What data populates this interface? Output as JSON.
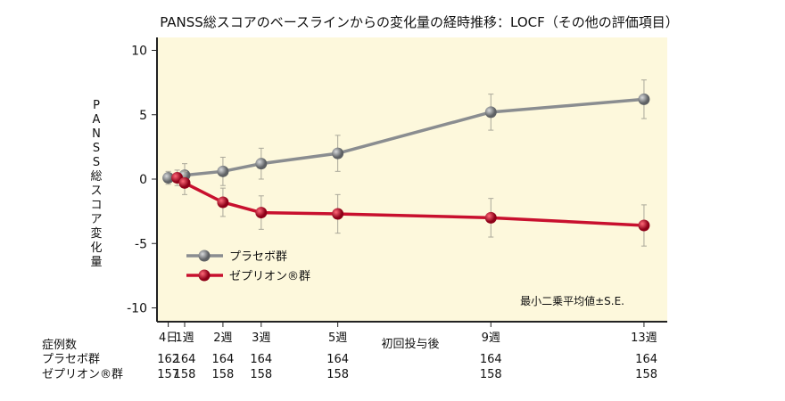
{
  "chart_data": {
    "type": "line",
    "title": "PANSS総スコアのベースラインからの変化量の経時推移：LOCF（その他の評価項目）",
    "ylabel": "PANSS総スコア変化量",
    "xlabel": "初回投与後",
    "ylim": [
      -11,
      11
    ],
    "yticks": [
      10,
      5,
      0,
      -5,
      -10
    ],
    "x_days": [
      4,
      7,
      14,
      21,
      35,
      63,
      91
    ],
    "categories": [
      "4日",
      "1週",
      "2週",
      "3週",
      "5週",
      "9週",
      "13週"
    ],
    "note": "最小二乗平均値±S.E.",
    "background": "#fdf8dc",
    "series": [
      {
        "name": "プラセボ群",
        "color": "#8a8d90",
        "values": [
          0.1,
          0.3,
          0.6,
          1.2,
          2.0,
          5.2,
          6.2
        ],
        "se": [
          0.5,
          0.9,
          1.1,
          1.2,
          1.4,
          1.4,
          1.5
        ]
      },
      {
        "name": "ゼプリオン®群",
        "color": "#c8102e",
        "values": [
          0.1,
          -0.3,
          -1.8,
          -2.6,
          -2.7,
          -3.0,
          -3.6
        ],
        "se": [
          0.6,
          0.9,
          1.1,
          1.3,
          1.5,
          1.5,
          1.6
        ]
      }
    ]
  },
  "table": {
    "header": "症例数",
    "rows": [
      {
        "label": "プラセボ群",
        "counts": [
          "162",
          "164",
          "164",
          "164",
          "164",
          "164",
          "164"
        ]
      },
      {
        "label": "ゼプリオン®群",
        "counts": [
          "157",
          "158",
          "158",
          "158",
          "158",
          "158",
          "158"
        ]
      }
    ]
  }
}
